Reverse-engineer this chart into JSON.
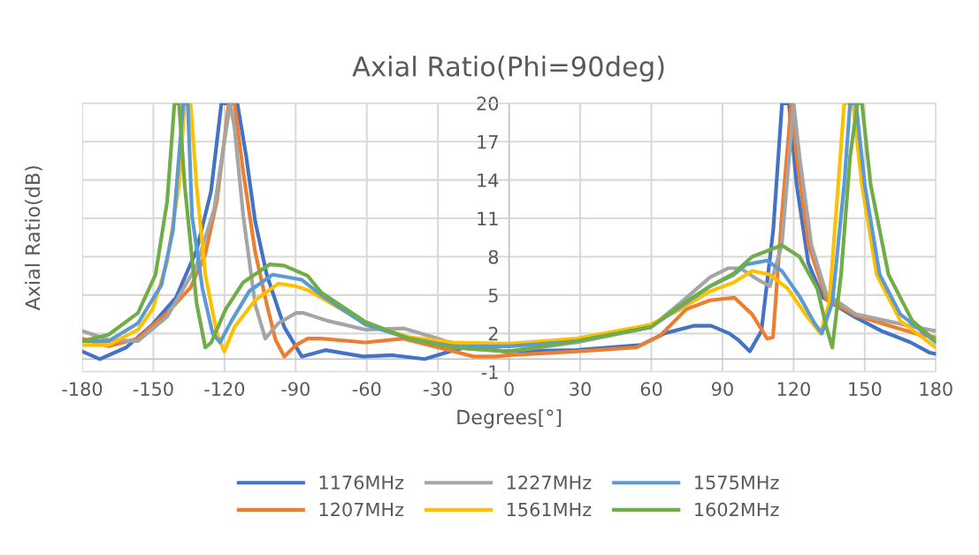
{
  "chart_data": {
    "type": "line",
    "title": "Axial Ratio(Phi=90deg)",
    "xlabel": "Degrees[°]",
    "ylabel": "Axial Ratio(dB)",
    "xlim": [
      -180,
      180
    ],
    "xticks": [
      -180,
      -150,
      -120,
      -90,
      -60,
      -30,
      0,
      30,
      60,
      90,
      120,
      150,
      180
    ],
    "ylim": [
      -1,
      20
    ],
    "yticks": [
      -1,
      2,
      5,
      8,
      11,
      14,
      17,
      20
    ],
    "grid": true,
    "legend": "bottom",
    "marker": "none",
    "line_style": "solid",
    "series": [
      {
        "name": "1176MHz",
        "color": "#4472c4",
        "x": [
          -180,
          -172.6,
          -161.5,
          -150.4,
          -140.5,
          -131.8,
          -125.7,
          -121.3,
          -114.6,
          -110.9,
          -107.1,
          -102.2,
          -94.8,
          -87.4,
          -77.5,
          -61.6,
          -49.1,
          -35.6,
          -23.2,
          -15.8,
          -2.3,
          28.4,
          55.6,
          65.5,
          77.8,
          85.2,
          92.9,
          96.6,
          101.5,
          106.4,
          111.4,
          115.1,
          118,
          121.3,
          126.2,
          132.4,
          144.7,
          157,
          169.4,
          177.4,
          180
        ],
        "values": [
          0.6,
          0,
          0.9,
          2.7,
          4.8,
          8.5,
          13.1,
          20,
          20,
          15.9,
          10.8,
          6.6,
          2.5,
          0.2,
          0.7,
          0.2,
          0.3,
          0,
          0.7,
          1,
          0.6,
          0.7,
          1.1,
          2,
          2.6,
          2.6,
          2,
          1.5,
          0.6,
          2.2,
          10.1,
          20,
          20,
          13.6,
          7.5,
          4.8,
          3.4,
          2.2,
          1.3,
          0.5,
          0.4
        ]
      },
      {
        "name": "1207MHz",
        "color": "#ed7d31",
        "x": [
          -180,
          -168.9,
          -156.5,
          -144.2,
          -134.3,
          -128.1,
          -123.2,
          -118.2,
          -115.8,
          -112.1,
          -107.1,
          -102.2,
          -98.5,
          -94.8,
          -89.8,
          -84.9,
          -79.2,
          -60.6,
          -44.6,
          -29.8,
          -15,
          -5.1,
          0,
          28.5,
          53.5,
          63.5,
          74.8,
          84.8,
          95,
          102.5,
          108.8,
          111.3,
          115,
          119,
          121.3,
          126.3,
          133.8,
          146.3,
          158.8,
          171.3,
          180
        ],
        "values": [
          1.6,
          1,
          1.6,
          3.6,
          5.6,
          8.2,
          12.4,
          20,
          20,
          14.6,
          8.4,
          4.3,
          1.5,
          0.2,
          1.1,
          1.6,
          1.6,
          1.3,
          1.6,
          0.9,
          0.2,
          0.2,
          0.3,
          0.6,
          0.9,
          1.8,
          3.9,
          4.6,
          4.8,
          3.5,
          1.6,
          1.7,
          11.2,
          20,
          15.8,
          8.9,
          4.7,
          3.4,
          2.7,
          2,
          1.7
        ]
      },
      {
        "name": "1227MHz",
        "color": "#a5a5a5",
        "x": [
          -180,
          -168.9,
          -156.5,
          -144.2,
          -131.8,
          -124.4,
          -117.6,
          -115.8,
          -112.1,
          -107.1,
          -102.8,
          -97.3,
          -89.8,
          -86.6,
          -76.7,
          -60.6,
          -44.6,
          -29.8,
          -17.4,
          0,
          28.5,
          59.8,
          72.3,
          84.8,
          92.3,
          97.5,
          105,
          110,
          115,
          120,
          122.5,
          127.5,
          133.8,
          146.3,
          158.8,
          171.3,
          180
        ],
        "values": [
          2.2,
          1.5,
          1.4,
          3.3,
          7.3,
          11.7,
          20,
          18.1,
          11.2,
          4.3,
          1.6,
          2.8,
          3.6,
          3.6,
          3,
          2.3,
          2.4,
          1.6,
          0.8,
          0.6,
          1.3,
          2.5,
          4.4,
          6.4,
          7.1,
          7.1,
          6.2,
          5.7,
          8.9,
          20,
          15.8,
          8.9,
          5.1,
          3.5,
          3,
          2.5,
          2.2
        ]
      },
      {
        "name": "1561MHz",
        "color": "#ffc000",
        "x": [
          -180,
          -168.9,
          -156.5,
          -150.3,
          -144.2,
          -139.2,
          -136.8,
          -134.3,
          -131.8,
          -128.1,
          -123.2,
          -120.1,
          -115.8,
          -107.1,
          -97.3,
          -90,
          -85,
          -79.2,
          -60.6,
          -42.1,
          -23.6,
          0,
          28.5,
          59.8,
          72.3,
          84.8,
          94.8,
          102.5,
          110,
          117.5,
          125,
          131.3,
          135,
          138.8,
          141.3,
          145,
          148.8,
          155,
          165,
          180
        ],
        "values": [
          1.1,
          1.1,
          2.3,
          3.9,
          7.6,
          13.6,
          20,
          20,
          13.6,
          6.6,
          2,
          0.6,
          2.5,
          4.6,
          5.9,
          5.7,
          5.4,
          4.8,
          2.8,
          1.7,
          1.3,
          1.2,
          1.6,
          2.7,
          3.9,
          5.3,
          6,
          6.9,
          6.6,
          5.5,
          3.5,
          2,
          4.4,
          13.6,
          20,
          20,
          13.6,
          6.6,
          3,
          0.9
        ]
      },
      {
        "name": "1575MHz",
        "color": "#5b9bd5",
        "x": [
          -180,
          -168.9,
          -156.5,
          -146.6,
          -141.7,
          -137.4,
          -135.5,
          -133.7,
          -129.3,
          -125,
          -121.9,
          -117,
          -109.6,
          -99.7,
          -87.4,
          -79.2,
          -60.6,
          -42.1,
          -23.6,
          0,
          28.5,
          59.8,
          72.3,
          84.8,
          94.8,
          100,
          108.8,
          115,
          122.5,
          128.8,
          131.9,
          136.3,
          141.3,
          143.8,
          146.3,
          150,
          156.3,
          165,
          180
        ],
        "values": [
          1.4,
          1.4,
          2.8,
          5.8,
          10.1,
          20,
          20,
          11.2,
          5.5,
          2,
          1.3,
          3,
          5.3,
          6.6,
          6.2,
          5,
          2.7,
          1.6,
          1,
          1,
          1.4,
          2.5,
          4.1,
          5.7,
          6.6,
          7.4,
          7.7,
          6.9,
          4.9,
          2.8,
          2,
          4.4,
          13.6,
          20,
          20,
          13.6,
          6.6,
          3.5,
          1.3
        ]
      },
      {
        "name": "1602MHz",
        "color": "#70ad47",
        "x": [
          -180,
          -168.9,
          -156.5,
          -149.1,
          -144.2,
          -141.1,
          -139.2,
          -136.8,
          -131.8,
          -128.1,
          -125.6,
          -119.5,
          -112.1,
          -101,
          -94.8,
          -84.9,
          -79.2,
          -60.6,
          -42.1,
          -23.6,
          0,
          28.5,
          59.8,
          72.3,
          84.8,
          94.8,
          102.5,
          115,
          122.5,
          130,
          133.8,
          136.3,
          140,
          143.8,
          146.9,
          148.8,
          152.5,
          160,
          170,
          180
        ],
        "values": [
          1.4,
          1.9,
          3.6,
          6.6,
          12.3,
          20,
          20,
          13.6,
          4.4,
          0.9,
          1.3,
          3.9,
          6,
          7.4,
          7.3,
          6.5,
          5.2,
          2.9,
          1.6,
          0.9,
          0.6,
          1.4,
          2.5,
          4.2,
          5.7,
          6.7,
          8,
          8.9,
          8,
          5.5,
          2.5,
          0.9,
          6.6,
          15.8,
          20,
          20,
          13.6,
          6.6,
          3,
          1.4
        ]
      }
    ]
  }
}
